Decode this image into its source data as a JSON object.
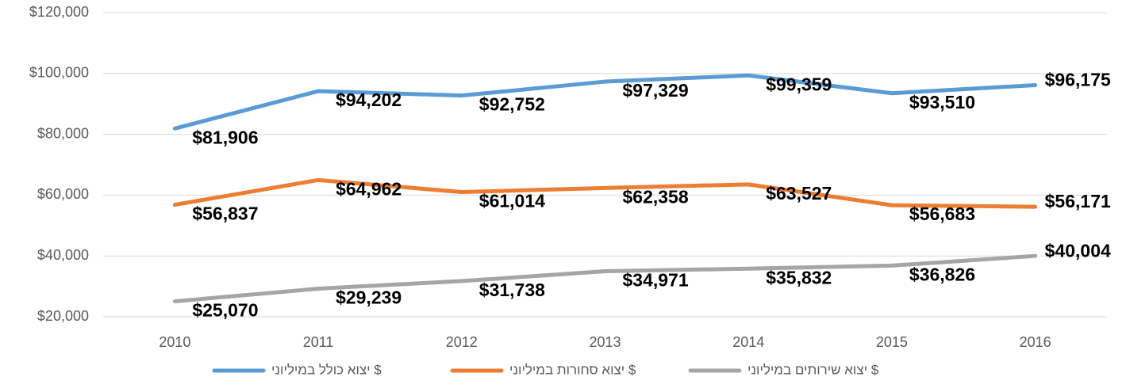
{
  "chart_data": {
    "type": "line",
    "categories": [
      "2010",
      "2011",
      "2012",
      "2013",
      "2014",
      "2015",
      "2016"
    ],
    "series": [
      {
        "name": "יצוא כולל במיליוני $",
        "color": "#5b9bd5",
        "values": [
          81906,
          94202,
          92752,
          97329,
          99359,
          93510,
          96175
        ],
        "value_labels": [
          "$81,906",
          "$94,202",
          "$92,752",
          "$97,329",
          "$99,359",
          "$93,510",
          "$96,175"
        ]
      },
      {
        "name": "יצוא סחורות במיליוני $",
        "color": "#ed7d31",
        "values": [
          56837,
          64962,
          61014,
          62358,
          63527,
          56683,
          56171
        ],
        "value_labels": [
          "$56,837",
          "$64,962",
          "$61,014",
          "$62,358",
          "$63,527",
          "$56,683",
          "$56,171"
        ]
      },
      {
        "name": "יצוא שירותים במיליוני $",
        "color": "#a5a5a5",
        "values": [
          25070,
          29239,
          31738,
          34971,
          35832,
          36826,
          40004
        ],
        "value_labels": [
          "$25,070",
          "$29,239",
          "$31,738",
          "$34,971",
          "$35,832",
          "$36,826",
          "$40,004"
        ]
      }
    ],
    "ylim": [
      20000,
      120000
    ],
    "yticks": [
      {
        "value": 20000,
        "label": "$20,000"
      },
      {
        "value": 40000,
        "label": "$40,000"
      },
      {
        "value": 60000,
        "label": "$60,000"
      },
      {
        "value": 80000,
        "label": "$80,000"
      },
      {
        "value": 100000,
        "label": "$100,000"
      },
      {
        "value": 120000,
        "label": "$120,000"
      }
    ],
    "grid": true,
    "legend": "bottom"
  }
}
